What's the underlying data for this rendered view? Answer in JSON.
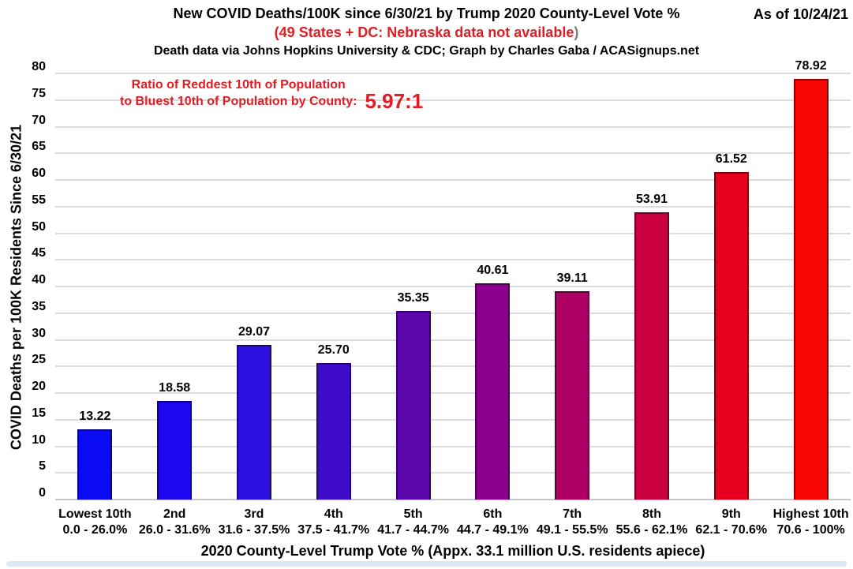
{
  "header": {
    "title": "New COVID Deaths/100K since 6/30/21 by Trump 2020 County-Level Vote %",
    "subtitle_red": "(49 States + DC: Nebraska data not available",
    "subtitle_close_paren": ")",
    "credit_line": "Death data via Johns Hopkins University & CDC; Graph by Charles Gaba / ACASignups.net",
    "as_of": "As of 10/24/21"
  },
  "annotation": {
    "line1": "Ratio of Reddest 10th of Population",
    "line2": "to Bluest 10th of Population by County:",
    "ratio_value": "5.97:1"
  },
  "chart_data": {
    "type": "bar",
    "title": "New COVID Deaths/100K since 6/30/21 by Trump 2020 County-Level Vote %",
    "categories": [
      "Lowest 10th",
      "2nd",
      "3rd",
      "4th",
      "5th",
      "6th",
      "7th",
      "8th",
      "9th",
      "Highest 10th"
    ],
    "category_ranges": [
      "0.0 - 26.0%",
      "26.0 - 31.6%",
      "31.6 - 37.5%",
      "37.5 - 41.7%",
      "41.7 - 44.7%",
      "44.7 - 49.1%",
      "49.1 - 55.5%",
      "55.6 - 62.1%",
      "62.1 - 70.6%",
      "70.6 - 100%"
    ],
    "values": [
      13.22,
      18.58,
      29.07,
      25.7,
      35.35,
      40.61,
      39.11,
      53.91,
      61.52,
      78.92
    ],
    "bar_colors": [
      "#0a0bf2",
      "#1c07ef",
      "#2c10e0",
      "#3f0cc9",
      "#5c07ae",
      "#8a0190",
      "#ac0065",
      "#cb0040",
      "#e6001d",
      "#fb0606"
    ],
    "ylabel": "COVID Deaths per 100K Residents Since 6/30/21",
    "xlabel": "2020 County-Level Trump Vote % (Appx. 33.1 million U.S. residents apiece)",
    "ylim": [
      0,
      80
    ],
    "ytick_step": 5,
    "grid": true,
    "legend": false,
    "value_labels_decimals": 2
  },
  "colors": {
    "red_text": "#e31b22",
    "paren_gray": "#7c7c7c",
    "grid": "#dcdcdc",
    "baseline": "#c6c6c6",
    "bottom_strip": "#dce8f5"
  }
}
